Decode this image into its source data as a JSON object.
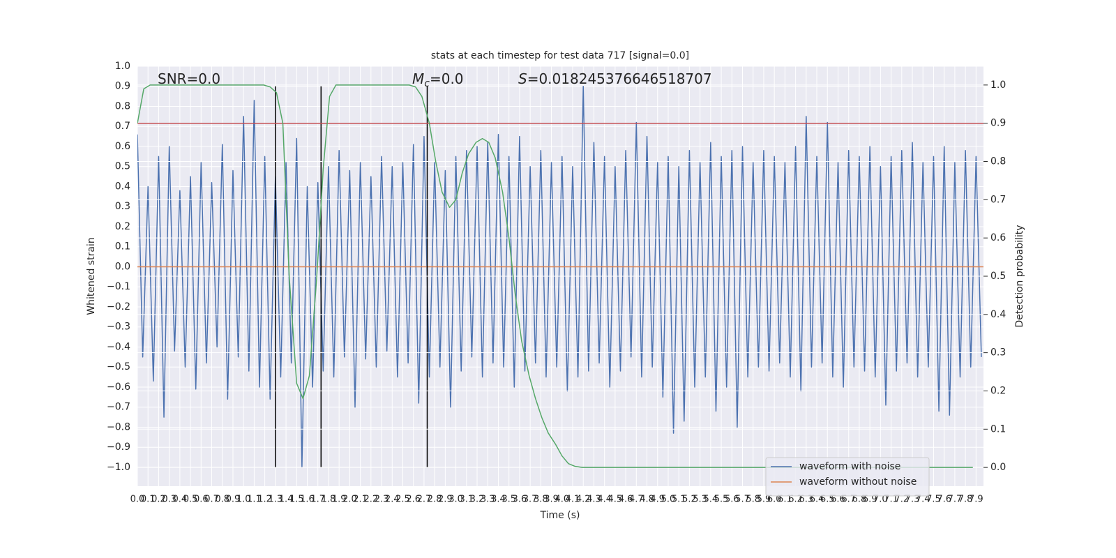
{
  "chart_data": {
    "type": "line",
    "title": "stats at each timestep for test data 717 [signal=0.0]",
    "xlabel": "Time (s)",
    "ylabel": "Whitened strain",
    "y2label": "Detection probability",
    "annotations": [
      {
        "text": "SNR=0.0"
      },
      {
        "italic": "M",
        "sub": "c",
        "text": "=0.0"
      },
      {
        "italic": "S",
        "text": "=0.018245376646518707"
      }
    ],
    "xlim": [
      0,
      7.97
    ],
    "ylim": [
      -1.094,
      1.0
    ],
    "y2lim": [
      -0.049,
      1.049
    ],
    "grid": true,
    "legend": "lower right",
    "background": "#eaeaf2",
    "xticks": [
      {
        "value": 0,
        "label": "0.0"
      },
      0.1,
      0.2,
      0.3,
      0.4,
      0.5,
      0.6,
      0.7,
      0.8,
      0.9,
      {
        "value": 1,
        "label": "1.0"
      },
      1.1,
      1.2,
      1.3,
      1.4,
      1.5,
      1.6,
      1.7,
      1.8,
      1.9,
      {
        "value": 2,
        "label": "2.0"
      },
      2.1,
      2.2,
      2.3,
      2.4,
      2.5,
      2.6,
      2.7,
      2.8,
      2.9,
      {
        "value": 3,
        "label": "3.0"
      },
      3.1,
      3.2,
      3.3,
      3.4,
      3.5,
      3.6,
      3.7,
      3.8,
      3.9,
      {
        "value": 4,
        "label": "4.0"
      },
      4.1,
      4.2,
      4.3,
      4.4,
      4.5,
      4.6,
      4.7,
      4.8,
      4.9,
      {
        "value": 5,
        "label": "5.0"
      },
      5.1,
      5.2,
      5.3,
      5.4,
      5.5,
      5.6,
      5.7,
      5.8,
      5.9,
      {
        "value": 6,
        "label": "6.0"
      },
      6.1,
      6.2,
      6.3,
      6.4,
      6.5,
      6.6,
      6.7,
      6.8,
      6.9,
      {
        "value": 7,
        "label": "7.0"
      },
      7.1,
      7.2,
      7.3,
      7.4,
      7.5,
      7.6,
      7.7,
      7.8,
      7.9
    ],
    "yticks": [
      {
        "value": -1,
        "label": "−1.0"
      },
      {
        "value": -0.9,
        "label": "−0.9"
      },
      {
        "value": -0.8,
        "label": "−0.8"
      },
      {
        "value": -0.7,
        "label": "−0.7"
      },
      {
        "value": -0.6,
        "label": "−0.6"
      },
      {
        "value": -0.5,
        "label": "−0.5"
      },
      {
        "value": -0.4,
        "label": "−0.4"
      },
      {
        "value": -0.3,
        "label": "−0.3"
      },
      {
        "value": -0.2,
        "label": "−0.2"
      },
      {
        "value": -0.1,
        "label": "−0.1"
      },
      {
        "value": 0,
        "label": "0.0"
      },
      0.1,
      0.2,
      0.3,
      0.4,
      0.5,
      0.6,
      0.7,
      0.8,
      0.9,
      {
        "value": 1,
        "label": "1.0"
      }
    ],
    "y2ticks": [
      {
        "value": 0,
        "label": "0.0"
      },
      0.1,
      0.2,
      0.3,
      0.4,
      0.5,
      0.6,
      0.7,
      0.8,
      0.9,
      {
        "value": 1,
        "label": "1.0"
      }
    ],
    "series": [
      {
        "name": "waveform with noise",
        "color": "#4c72b0",
        "x": [
          0,
          0.05,
          0.1,
          0.15,
          0.2,
          0.25,
          0.3,
          0.35,
          0.4,
          0.45,
          0.5,
          0.55,
          0.6,
          0.65,
          0.7,
          0.75,
          0.8,
          0.85,
          0.9,
          0.95,
          1,
          1.05,
          1.1,
          1.15,
          1.2,
          1.25,
          1.3,
          1.35,
          1.4,
          1.45,
          1.5,
          1.55,
          1.6,
          1.65,
          1.7,
          1.75,
          1.8,
          1.85,
          1.9,
          1.95,
          2,
          2.05,
          2.1,
          2.15,
          2.2,
          2.25,
          2.3,
          2.35,
          2.4,
          2.45,
          2.5,
          2.55,
          2.6,
          2.65,
          2.7,
          2.75,
          2.8,
          2.85,
          2.9,
          2.95,
          3,
          3.05,
          3.1,
          3.15,
          3.2,
          3.25,
          3.3,
          3.35,
          3.4,
          3.45,
          3.5,
          3.55,
          3.6,
          3.65,
          3.7,
          3.75,
          3.8,
          3.85,
          3.9,
          3.95,
          4,
          4.05,
          4.1,
          4.15,
          4.2,
          4.25,
          4.3,
          4.35,
          4.4,
          4.45,
          4.5,
          4.55,
          4.6,
          4.65,
          4.7,
          4.75,
          4.8,
          4.85,
          4.9,
          4.95,
          5,
          5.05,
          5.1,
          5.15,
          5.2,
          5.25,
          5.3,
          5.35,
          5.4,
          5.45,
          5.5,
          5.55,
          5.6,
          5.65,
          5.7,
          5.75,
          5.8,
          5.85,
          5.9,
          5.95,
          6,
          6.05,
          6.1,
          6.15,
          6.2,
          6.25,
          6.3,
          6.35,
          6.4,
          6.45,
          6.5,
          6.55,
          6.6,
          6.65,
          6.7,
          6.75,
          6.8,
          6.85,
          6.9,
          6.95,
          7,
          7.05,
          7.1,
          7.15,
          7.2,
          7.25,
          7.3,
          7.35,
          7.4,
          7.45,
          7.5,
          7.55,
          7.6,
          7.65,
          7.7,
          7.75,
          7.8,
          7.85,
          7.9,
          7.95
        ],
        "values": [
          0.66,
          -0.45,
          0.4,
          -0.57,
          0.55,
          -0.75,
          0.6,
          -0.42,
          0.38,
          -0.5,
          0.45,
          -0.61,
          0.52,
          -0.48,
          0.42,
          -0.4,
          0.61,
          -0.66,
          0.48,
          -0.45,
          0.75,
          -0.52,
          0.83,
          -0.6,
          0.55,
          -0.66,
          0.45,
          -0.55,
          0.52,
          -0.48,
          0.64,
          -1.0,
          0.4,
          -0.6,
          0.42,
          -0.52,
          0.5,
          -0.55,
          0.58,
          -0.45,
          0.48,
          -0.7,
          0.52,
          -0.46,
          0.45,
          -0.5,
          0.55,
          -0.42,
          0.5,
          -0.55,
          0.52,
          -0.48,
          0.61,
          -0.68,
          0.65,
          -0.55,
          0.52,
          -0.5,
          0.48,
          -0.7,
          0.55,
          -0.52,
          0.58,
          -0.45,
          0.6,
          -0.55,
          0.62,
          -0.48,
          0.66,
          -0.5,
          0.55,
          -0.6,
          0.65,
          -0.52,
          0.5,
          -0.48,
          0.58,
          -0.55,
          0.52,
          -0.5,
          0.55,
          -0.62,
          0.5,
          -0.55,
          0.9,
          -0.52,
          0.62,
          -0.48,
          0.55,
          -0.6,
          0.5,
          -0.52,
          0.58,
          -0.45,
          0.72,
          -0.55,
          0.65,
          -0.5,
          0.52,
          -0.65,
          0.55,
          -0.83,
          0.5,
          -0.77,
          0.58,
          -0.6,
          0.52,
          -0.55,
          0.62,
          -0.72,
          0.55,
          -0.6,
          0.58,
          -0.8,
          0.6,
          -0.55,
          0.52,
          -0.5,
          0.58,
          -0.52,
          0.55,
          -0.48,
          0.52,
          -0.55,
          0.6,
          -0.62,
          0.75,
          -0.5,
          0.55,
          -0.48,
          0.72,
          -0.55,
          0.52,
          -0.6,
          0.58,
          -0.5,
          0.55,
          -0.52,
          0.6,
          -0.55,
          0.5,
          -0.69,
          0.55,
          -0.52,
          0.58,
          -0.48,
          0.62,
          -0.55,
          0.52,
          -0.5,
          0.55,
          -0.72,
          0.6,
          -0.74,
          0.52,
          -0.55,
          0.58,
          -0.5,
          0.55,
          -0.45
        ]
      },
      {
        "name": "waveform without noise",
        "color": "#dd8452",
        "x": [
          0,
          7.97
        ],
        "values": [
          0,
          0
        ]
      },
      {
        "color": "#c44e52",
        "axis": "y2",
        "x": [
          0,
          7.97
        ],
        "values": [
          0.9,
          0.9
        ]
      },
      {
        "color": "#55a868",
        "axis": "y2",
        "x": [
          0,
          0.06,
          0.12,
          1.19,
          1.25,
          1.31,
          1.37,
          1.43,
          1.5,
          1.56,
          1.62,
          1.69,
          1.75,
          1.81,
          1.87,
          1.94,
          2.56,
          2.62,
          2.68,
          2.75,
          2.81,
          2.87,
          2.94,
          3.0,
          3.06,
          3.12,
          3.19,
          3.25,
          3.31,
          3.37,
          3.44,
          3.5,
          3.56,
          3.62,
          3.69,
          3.75,
          3.81,
          3.87,
          3.94,
          4.0,
          4.06,
          4.12,
          4.19,
          7.87
        ],
        "values": [
          0.9,
          0.99,
          1.0,
          1.0,
          0.995,
          0.98,
          0.9,
          0.5,
          0.22,
          0.18,
          0.24,
          0.5,
          0.78,
          0.97,
          1.0,
          1.0,
          1.0,
          0.995,
          0.97,
          0.9,
          0.8,
          0.72,
          0.68,
          0.7,
          0.77,
          0.82,
          0.85,
          0.86,
          0.85,
          0.81,
          0.72,
          0.6,
          0.45,
          0.33,
          0.24,
          0.18,
          0.13,
          0.09,
          0.06,
          0.03,
          0.01,
          0.003,
          0.0,
          0.0
        ]
      }
    ],
    "vlines": {
      "x": [
        1.3,
        1.73,
        2.73
      ],
      "ymin": -1.0,
      "ymax": 0.9,
      "color": "#000000"
    }
  }
}
